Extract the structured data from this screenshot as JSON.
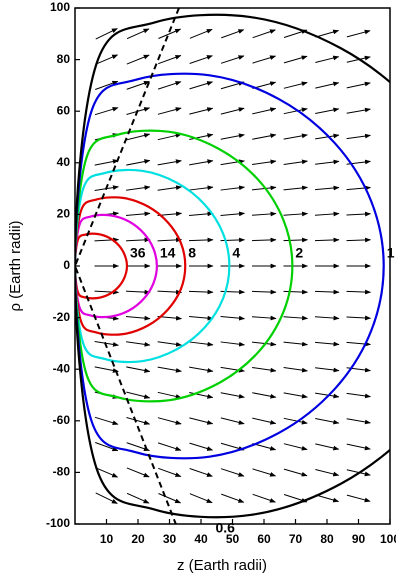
{
  "chart_data": {
    "type": "contour",
    "xlabel": "z (Earth radii)",
    "ylabel": "ρ (Earth radii)",
    "xlim": [
      0,
      100
    ],
    "ylim": [
      -100,
      100
    ],
    "xticks": [
      10,
      20,
      30,
      40,
      50,
      60,
      70,
      80,
      90,
      100
    ],
    "yticks": [
      -100,
      -80,
      -60,
      -40,
      -20,
      0,
      20,
      40,
      60,
      80,
      100
    ],
    "grid": false,
    "series": [
      {
        "name": "36",
        "color": "#e00000",
        "x": [
          0,
          0.9,
          3.3,
          7.2,
          10.9,
          13.9,
          15.8,
          16.5,
          15.8,
          13.9,
          10.9,
          7.2,
          3.3,
          0.9
        ],
        "y": [
          0,
          10.1,
          12.2,
          12.4,
          10.9,
          8.0,
          4.2,
          0,
          -4.2,
          -8.0,
          -10.9,
          -12.4,
          -12.2,
          -10.1
        ]
      },
      {
        "name": "14",
        "color": "#e000e0",
        "x": [
          0,
          1.4,
          5.1,
          11.3,
          17.2,
          21.9,
          24.9,
          26,
          24.9,
          21.9,
          17.2,
          11.3,
          5.1,
          1.4
        ],
        "y": [
          0,
          15.9,
          19.2,
          19.6,
          17.2,
          12.6,
          6.7,
          0,
          -6.7,
          -12.6,
          -17.2,
          -19.6,
          -19.2,
          -15.9
        ]
      },
      {
        "name": "8",
        "color": "#e00000",
        "x": [
          0,
          1.9,
          6.9,
          15.2,
          23.1,
          29.4,
          33.6,
          35,
          33.6,
          29.4,
          23.1,
          15.2,
          6.9,
          1.9
        ],
        "y": [
          0,
          21.4,
          25.8,
          26.4,
          23.1,
          17.0,
          9.0,
          0,
          -9.0,
          -17.0,
          -23.1,
          -26.4,
          -25.8,
          -21.4
        ]
      },
      {
        "name": "4",
        "color": "#00e0e0",
        "x": [
          0,
          2.6,
          9.7,
          21.3,
          32.3,
          41.2,
          47.0,
          49,
          47.0,
          41.2,
          32.3,
          21.3,
          9.7,
          2.6
        ],
        "y": [
          0,
          30.0,
          36.1,
          36.9,
          32.3,
          23.8,
          12.6,
          0,
          -12.6,
          -23.8,
          -32.3,
          -36.9,
          -36.1,
          -30.0
        ]
      },
      {
        "name": "2",
        "color": "#00d000",
        "x": [
          0,
          3.7,
          13.6,
          30.0,
          45.5,
          58.1,
          66.2,
          69,
          66.2,
          58.1,
          45.5,
          30.0,
          13.6,
          3.7
        ],
        "y": [
          0,
          42.2,
          50.9,
          52.0,
          45.5,
          33.5,
          17.7,
          0,
          -17.7,
          -33.5,
          -45.5,
          -52.0,
          -50.9,
          -42.2
        ]
      },
      {
        "name": "1",
        "color": "#0000e0",
        "x": [
          0,
          5.2,
          19.4,
          42.7,
          64.7,
          82.5,
          94.0,
          98,
          94.0,
          82.5,
          64.7,
          42.7,
          19.4,
          5.2
        ],
        "y": [
          0,
          59.9,
          72.2,
          73.9,
          64.7,
          47.6,
          25.2,
          0,
          -25.2,
          -47.6,
          -64.7,
          -73.9,
          -72.2,
          -59.9
        ]
      },
      {
        "name": "0.6",
        "color": "#000000",
        "x": [
          0,
          6.8,
          25.3,
          55.7,
          84.4,
          107.7,
          122.8,
          128,
          122.8,
          107.7,
          84.4,
          55.7,
          25.3,
          6.8
        ],
        "y": [
          0,
          78.3,
          94.4,
          96.5,
          84.4,
          62.2,
          32.9,
          0,
          -32.9,
          -62.2,
          -84.4,
          -96.5,
          -94.4,
          -78.3
        ]
      }
    ],
    "lines": [
      {
        "color": "#000000",
        "style": "dashed",
        "x": [
          33,
          0,
          32
        ],
        "y": [
          100,
          0,
          -100
        ]
      }
    ],
    "field": {
      "color": "#000000",
      "x": [
        10,
        20,
        30,
        40,
        50,
        60,
        70,
        80,
        90
      ],
      "y": [
        90,
        80,
        70,
        60,
        50,
        40,
        30,
        20,
        10,
        0,
        -10,
        -20,
        -30,
        -40,
        -50,
        -60,
        -70,
        -80,
        -90
      ],
      "angles": [
        [
          26,
          24,
          23,
          22,
          20,
          19,
          18,
          16,
          15
        ],
        [
          23,
          22,
          20,
          19,
          18,
          17,
          16,
          14,
          13
        ],
        [
          20,
          19,
          18,
          17,
          16,
          15,
          14,
          13,
          12
        ],
        [
          17,
          16,
          15,
          14,
          14,
          13,
          12,
          11,
          10
        ],
        [
          14,
          14,
          13,
          12,
          11,
          11,
          10,
          9,
          8
        ],
        [
          11,
          11,
          10,
          10,
          9,
          8,
          8,
          7,
          7
        ],
        [
          9,
          8,
          8,
          7,
          7,
          6,
          6,
          5,
          5
        ],
        [
          6,
          5,
          5,
          5,
          5,
          4,
          4,
          4,
          3
        ],
        [
          3,
          3,
          3,
          2,
          2,
          2,
          2,
          2,
          2
        ],
        [
          0,
          0,
          0,
          0,
          0,
          0,
          0,
          0,
          0
        ],
        [
          -3,
          -3,
          -3,
          -2,
          -2,
          -2,
          -2,
          -2,
          -2
        ],
        [
          -6,
          -5,
          -5,
          -5,
          -5,
          -4,
          -4,
          -4,
          -3
        ],
        [
          -9,
          -8,
          -8,
          -7,
          -7,
          -6,
          -6,
          -5,
          -5
        ],
        [
          -11,
          -11,
          -10,
          -10,
          -9,
          -8,
          -8,
          -7,
          -7
        ],
        [
          -14,
          -14,
          -13,
          -12,
          -11,
          -11,
          -10,
          -9,
          -8
        ],
        [
          -17,
          -16,
          -15,
          -14,
          -14,
          -13,
          -12,
          -11,
          -10
        ],
        [
          -20,
          -19,
          -18,
          -17,
          -16,
          -15,
          -14,
          -13,
          -12
        ],
        [
          -23,
          -22,
          -20,
          -19,
          -18,
          -17,
          -16,
          -14,
          -13
        ],
        [
          -26,
          -24,
          -23,
          -22,
          -20,
          -19,
          -18,
          -16,
          -15
        ]
      ]
    }
  }
}
